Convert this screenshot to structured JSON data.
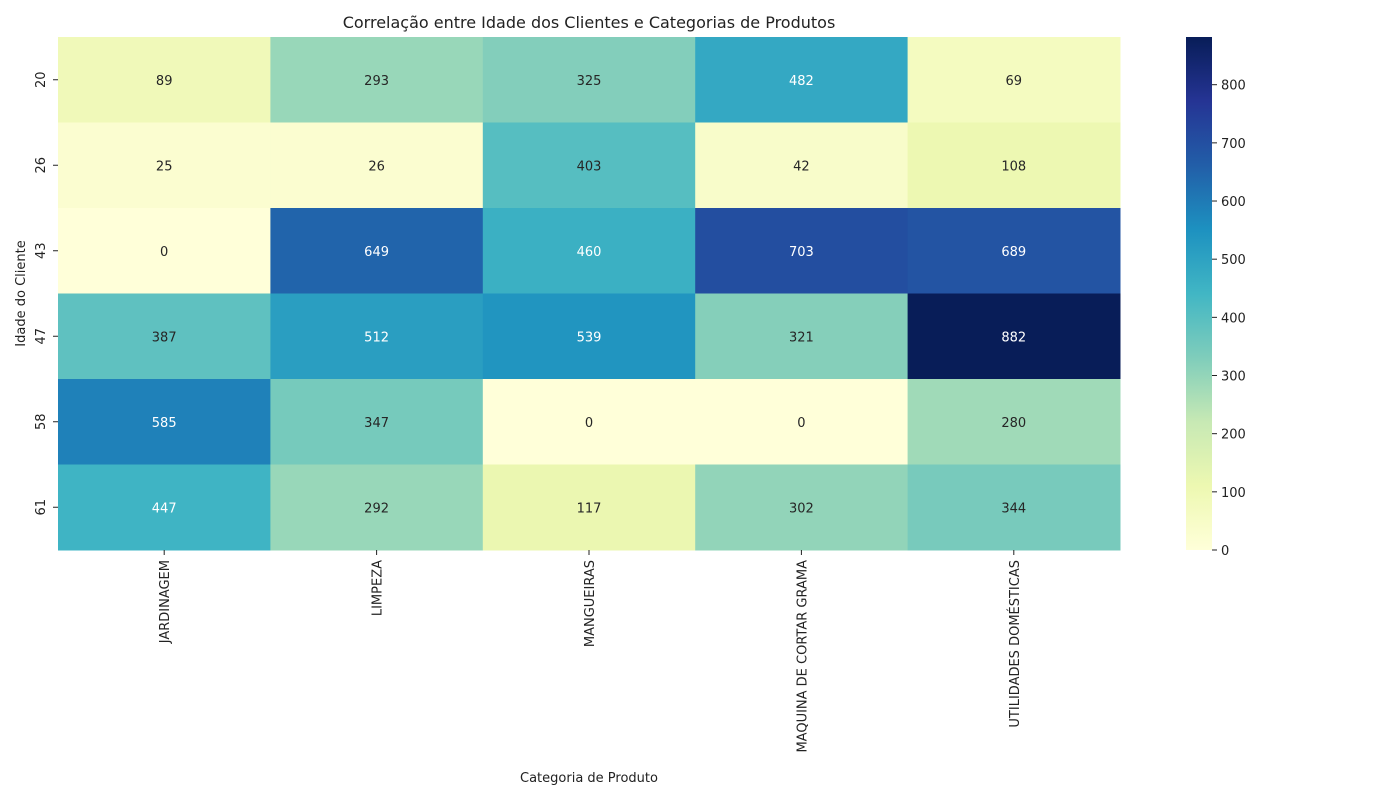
{
  "chart_data": {
    "type": "heatmap",
    "title": "Correlação entre Idade dos Clientes e Categorias de Produtos",
    "xlabel": "Categoria de Produto",
    "ylabel": "Idade do Cliente",
    "x_categories": [
      "JARDINAGEM",
      "LIMPEZA",
      "MANGUEIRAS",
      "MAQUINA DE CORTAR GRAMA",
      "UTILIDADES DOMÉSTICAS"
    ],
    "y_categories": [
      "20",
      "26",
      "43",
      "47",
      "58",
      "61"
    ],
    "values": [
      [
        89,
        293,
        325,
        482,
        69
      ],
      [
        25,
        26,
        403,
        42,
        108
      ],
      [
        0,
        649,
        460,
        703,
        689
      ],
      [
        387,
        512,
        539,
        321,
        882
      ],
      [
        585,
        347,
        0,
        0,
        280
      ],
      [
        447,
        292,
        117,
        302,
        344
      ]
    ],
    "colormap": "YlGnBu",
    "vmin": 0,
    "vmax": 882,
    "colorbar_ticks": [
      0,
      100,
      200,
      300,
      400,
      500,
      600,
      700,
      800
    ],
    "annotate": true
  }
}
